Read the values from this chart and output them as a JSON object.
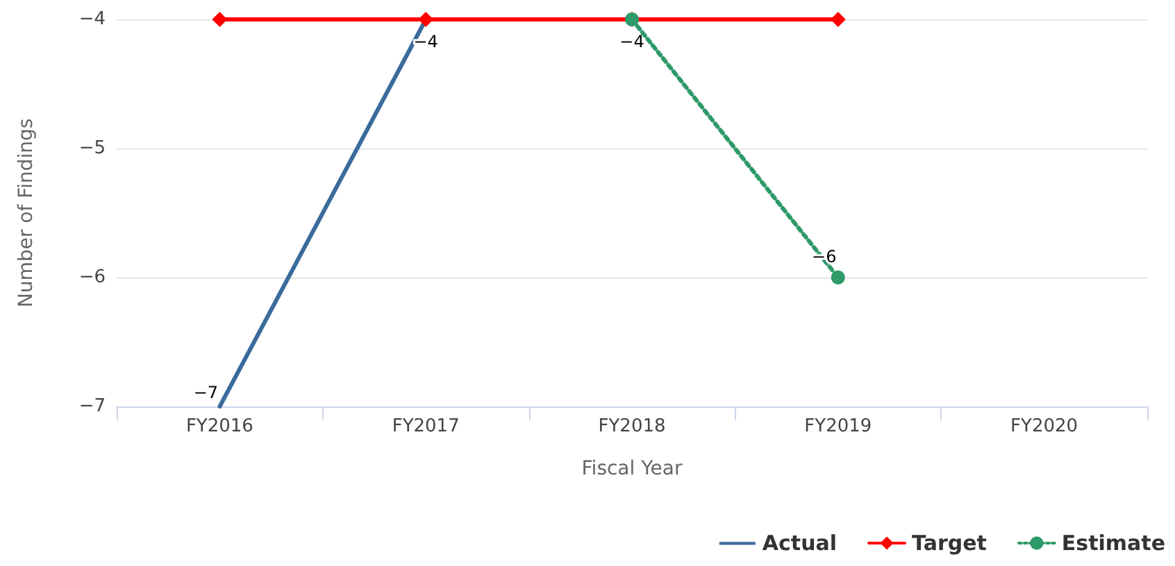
{
  "chart_data": {
    "type": "line",
    "xlabel": "Fiscal Year",
    "ylabel": "Number of Findings",
    "categories": [
      "FY2016",
      "FY2017",
      "FY2018",
      "FY2019",
      "FY2020"
    ],
    "series": [
      {
        "name": "Actual",
        "color": "#3a6b9c",
        "values": [
          -7,
          -4,
          -4,
          null,
          null
        ],
        "value_labels": [
          "−7",
          "−4",
          "−4",
          null,
          null
        ],
        "marker": "none",
        "line_style": "solid"
      },
      {
        "name": "Target",
        "color": "#ff0000",
        "values": [
          -4,
          -4,
          -4,
          -4,
          null
        ],
        "marker": "diamond",
        "line_style": "solid"
      },
      {
        "name": "Estimate",
        "color": "#2e9a68",
        "values": [
          null,
          null,
          -4,
          -6,
          null
        ],
        "value_labels": [
          null,
          null,
          null,
          "−6",
          null
        ],
        "marker": "circle",
        "line_style": "dotted"
      }
    ],
    "ylim": [
      -7,
      -4
    ],
    "yticks": [
      -7,
      -6,
      -5,
      -4
    ],
    "grid": "y",
    "legend": "bottom right"
  }
}
